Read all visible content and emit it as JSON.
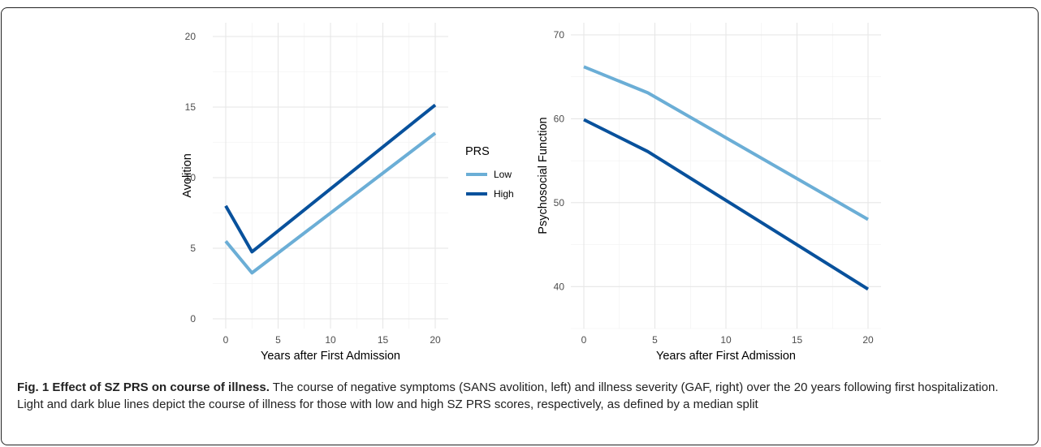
{
  "caption": {
    "label": "Fig. 1 Effect of SZ PRS on course of illness.",
    "text": "The course of negative symptoms (SANS avolition, left) and illness severity (GAF, right) over the 20 years following first hospitalization. Light and dark blue lines depict the course of illness for those with low and high SZ PRS scores, respectively, as defined by a median split"
  },
  "legend": {
    "title": "PRS",
    "entries": [
      {
        "label": "Low",
        "color": "#6baed6"
      },
      {
        "label": "High",
        "color": "#08519c"
      }
    ]
  },
  "chart_data": [
    {
      "type": "line",
      "xlabel": "Years after First Admission",
      "ylabel": "Avolition",
      "xlim": [
        0,
        20
      ],
      "ylim": [
        0,
        20
      ],
      "xticks": [
        0,
        5,
        10,
        15,
        20
      ],
      "yticks": [
        0,
        5,
        10,
        15,
        20
      ],
      "grid": true,
      "series": [
        {
          "name": "Low",
          "color": "#6baed6",
          "x": [
            0,
            2.5,
            20
          ],
          "y": [
            5.5,
            3.25,
            13.15
          ]
        },
        {
          "name": "High",
          "color": "#08519c",
          "x": [
            0,
            2.5,
            20
          ],
          "y": [
            8.0,
            4.75,
            15.15
          ]
        }
      ]
    },
    {
      "type": "line",
      "xlabel": "Years after First Admission",
      "ylabel": "Psychosocial Function",
      "xlim": [
        0,
        20
      ],
      "ylim": [
        35,
        70
      ],
      "xticks": [
        0,
        5,
        10,
        15,
        20
      ],
      "yticks": [
        40,
        50,
        60,
        70
      ],
      "grid": true,
      "series": [
        {
          "name": "Low",
          "color": "#6baed6",
          "x": [
            0,
            4.5,
            20
          ],
          "y": [
            66.2,
            63.1,
            48.0
          ]
        },
        {
          "name": "High",
          "color": "#08519c",
          "x": [
            0,
            4.5,
            20
          ],
          "y": [
            59.9,
            56.1,
            39.7
          ]
        }
      ]
    }
  ]
}
